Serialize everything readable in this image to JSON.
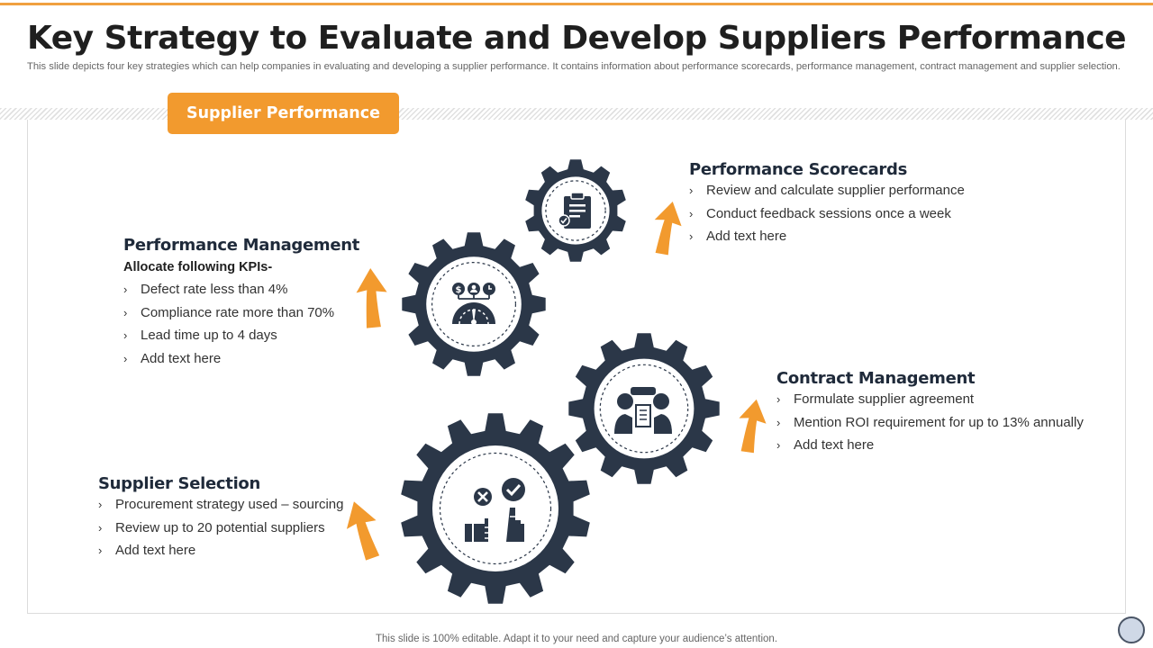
{
  "slide": {
    "title": "Key Strategy to Evaluate and Develop Suppliers Performance",
    "subtitle": "This slide depicts four key strategies which can help companies in evaluating and developing a supplier performance. It contains information about performance scorecards, performance management, contract management and supplier selection.",
    "banner": "Supplier Performance",
    "footer": "This slide is 100% editable. Adapt it to your need and capture your audience’s attention."
  },
  "colors": {
    "accent": "#f29a2e",
    "gear": "#2b3748",
    "text": "#1f2a3a"
  },
  "sections": {
    "scorecards": {
      "title": "Performance Scorecards",
      "icon": "clipboard-icon",
      "items": [
        "Review and calculate supplier performance",
        "Conduct feedback sessions once a week",
        "Add text here"
      ]
    },
    "management": {
      "title": "Performance Management",
      "subtitle": "Allocate following KPIs-",
      "icon": "kpi-gauge-icon",
      "items": [
        "Defect rate less than 4%",
        "Compliance rate more than 70%",
        "Lead time up to 4 days",
        "Add text here"
      ]
    },
    "contract": {
      "title": "Contract Management",
      "icon": "handshake-agreement-icon",
      "items": [
        "Formulate supplier agreement",
        "Mention ROI requirement for up to 13% annually",
        "Add text here"
      ]
    },
    "selection": {
      "title": "Supplier Selection",
      "icon": "select-reject-icon",
      "items": [
        "Procurement strategy used – sourcing",
        "Review up to 20 potential suppliers",
        "Add text here"
      ]
    }
  }
}
